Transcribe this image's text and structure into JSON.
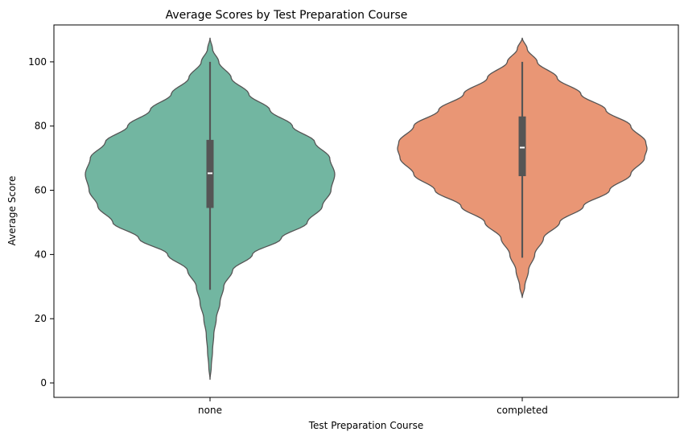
{
  "chart_data": {
    "type": "violin",
    "title": "Average Scores by Test Preparation Course",
    "xlabel": "Test Preparation Course",
    "ylabel": "Average Score",
    "ylim": [
      -4.5,
      111.5
    ],
    "yticks": [
      0,
      20,
      40,
      60,
      80,
      100
    ],
    "categories": [
      "none",
      "completed"
    ],
    "grid": false,
    "legend": "none",
    "series": [
      {
        "category": "none",
        "color": "#72b6a1",
        "min": 29,
        "q1": 54.5,
        "median": 65.3,
        "q3": 75.7,
        "max": 100,
        "kde_range": [
          1,
          107.5
        ],
        "density_profile": [
          [
            1,
            0.0
          ],
          [
            5,
            0.01
          ],
          [
            10,
            0.02
          ],
          [
            15,
            0.03
          ],
          [
            20,
            0.05
          ],
          [
            25,
            0.08
          ],
          [
            30,
            0.11
          ],
          [
            35,
            0.18
          ],
          [
            40,
            0.34
          ],
          [
            45,
            0.57
          ],
          [
            50,
            0.78
          ],
          [
            55,
            0.9
          ],
          [
            60,
            0.97
          ],
          [
            65,
            1.0
          ],
          [
            70,
            0.96
          ],
          [
            75,
            0.84
          ],
          [
            80,
            0.66
          ],
          [
            85,
            0.48
          ],
          [
            90,
            0.31
          ],
          [
            95,
            0.17
          ],
          [
            100,
            0.07
          ],
          [
            104,
            0.02
          ],
          [
            107.5,
            0.0
          ]
        ]
      },
      {
        "category": "completed",
        "color": "#e99675",
        "min": 39,
        "q1": 64.4,
        "median": 73.3,
        "q3": 83,
        "max": 100,
        "kde_range": [
          26.5,
          107.5
        ],
        "density_profile": [
          [
            26.5,
            0.0
          ],
          [
            30,
            0.02
          ],
          [
            35,
            0.05
          ],
          [
            40,
            0.1
          ],
          [
            45,
            0.17
          ],
          [
            50,
            0.3
          ],
          [
            55,
            0.49
          ],
          [
            60,
            0.7
          ],
          [
            65,
            0.87
          ],
          [
            70,
            0.98
          ],
          [
            73,
            1.0
          ],
          [
            75,
            0.99
          ],
          [
            80,
            0.87
          ],
          [
            85,
            0.67
          ],
          [
            90,
            0.47
          ],
          [
            95,
            0.28
          ],
          [
            100,
            0.12
          ],
          [
            104,
            0.04
          ],
          [
            107.5,
            0.0
          ]
        ]
      }
    ]
  }
}
